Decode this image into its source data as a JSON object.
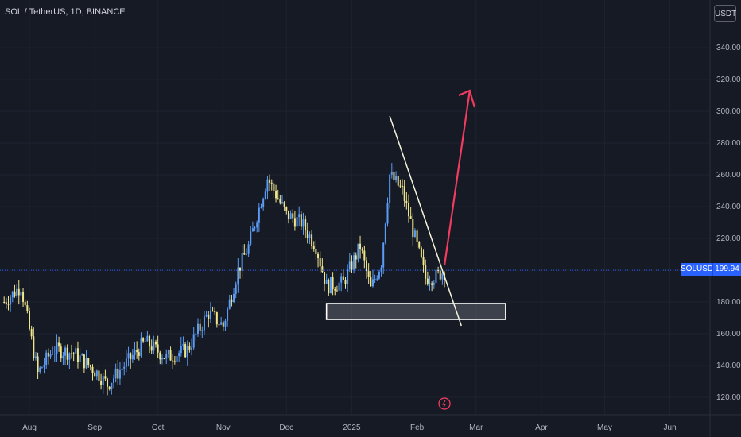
{
  "chart_title": "SOL / TetherUS, 1D, BINANCE",
  "currency_button": "USDT",
  "current_price": {
    "symbol": "SOLUSDT",
    "value": "199.94"
  },
  "colors": {
    "background": "#161a25",
    "up": "#5b9cf6",
    "down": "#f0e68c",
    "arrow": "#f23b5f",
    "price_line": "#2962ff",
    "grid": "#1e2230"
  },
  "chart_data": {
    "type": "candlestick",
    "title": "SOL / TetherUS, 1D, BINANCE",
    "y_ticks": [
      120,
      140,
      160,
      180,
      200,
      220,
      240,
      260,
      280,
      300,
      320,
      340
    ],
    "ylim": [
      110,
      350
    ],
    "x_ticks": [
      "Aug",
      "Sep",
      "Oct",
      "Nov",
      "Dec",
      "2025",
      "Feb",
      "Mar",
      "Apr",
      "May",
      "Jun"
    ],
    "last_price": 199.94,
    "close_path": [
      {
        "x": "Jul 20",
        "y": 180
      },
      {
        "x": "Jul 28",
        "y": 190
      },
      {
        "x": "Aug 5",
        "y": 135
      },
      {
        "x": "Aug 12",
        "y": 150
      },
      {
        "x": "Aug 22",
        "y": 148
      },
      {
        "x": "Sep 1",
        "y": 137
      },
      {
        "x": "Sep 7",
        "y": 128
      },
      {
        "x": "Sep 15",
        "y": 140
      },
      {
        "x": "Sep 25",
        "y": 155
      },
      {
        "x": "Oct 5",
        "y": 145
      },
      {
        "x": "Oct 15",
        "y": 150
      },
      {
        "x": "Oct 25",
        "y": 173
      },
      {
        "x": "Nov 1",
        "y": 165
      },
      {
        "x": "Nov 8",
        "y": 200
      },
      {
        "x": "Nov 13",
        "y": 215
      },
      {
        "x": "Nov 22",
        "y": 258
      },
      {
        "x": "Dec 1",
        "y": 235
      },
      {
        "x": "Dec 8",
        "y": 230
      },
      {
        "x": "Dec 15",
        "y": 215
      },
      {
        "x": "Dec 20",
        "y": 190
      },
      {
        "x": "Dec 28",
        "y": 192
      },
      {
        "x": "Jan 5",
        "y": 215
      },
      {
        "x": "Jan 10",
        "y": 188
      },
      {
        "x": "Jan 15",
        "y": 205
      },
      {
        "x": "Jan 19",
        "y": 260
      },
      {
        "x": "Jan 25",
        "y": 250
      },
      {
        "x": "Feb 1",
        "y": 215
      },
      {
        "x": "Feb 5",
        "y": 195
      },
      {
        "x": "Feb 10",
        "y": 196
      },
      {
        "x": "Feb 14",
        "y": 199.94
      }
    ],
    "annotations": {
      "support_zone": {
        "from": "Dec 20",
        "to": "Mar 15",
        "y_low": 169,
        "y_high": 179
      },
      "trendline": {
        "from": {
          "x": "Jan 19",
          "y": 297
        },
        "to": {
          "x": "Feb 22",
          "y": 165
        }
      },
      "projection_arrow": {
        "from": {
          "x": "Feb 14",
          "y": 203
        },
        "to": {
          "x": "Feb 26",
          "y": 313
        }
      }
    }
  }
}
